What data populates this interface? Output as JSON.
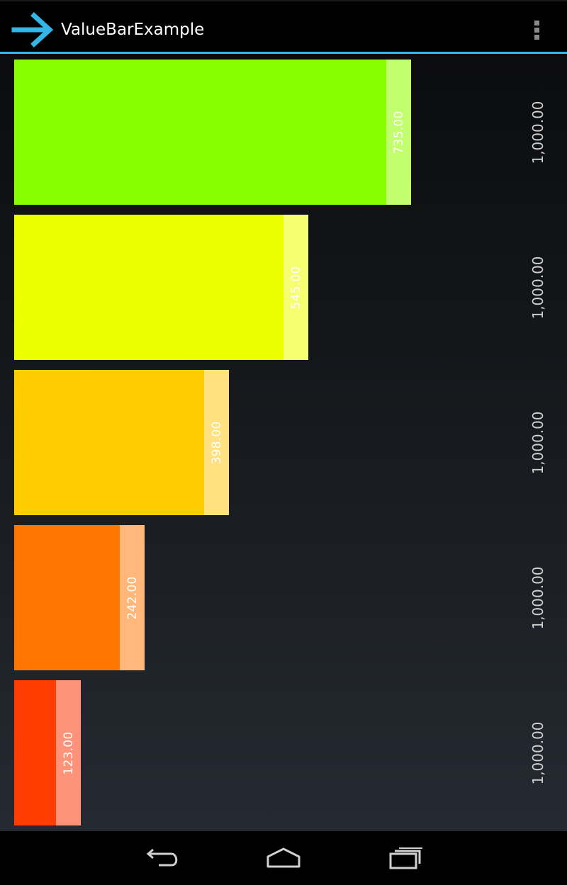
{
  "app": {
    "title": "ValueBarExample",
    "accent_color": "#33b5e5"
  },
  "action_bar": {
    "icon": "forward-arrow-icon",
    "overflow_icon": "overflow-menu-icon"
  },
  "bars": [
    {
      "value_label": "735.00",
      "max_label": "1,000.00",
      "value": 735,
      "max": 1000,
      "color": "#88ff00",
      "tip_color": "#c2ff6e"
    },
    {
      "value_label": "545.00",
      "max_label": "1,000.00",
      "value": 545,
      "max": 1000,
      "color": "#eeff00",
      "tip_color": "#f5ff70"
    },
    {
      "value_label": "398.00",
      "max_label": "1,000.00",
      "value": 398,
      "max": 1000,
      "color": "#ffcc00",
      "tip_color": "#ffe180"
    },
    {
      "value_label": "242.00",
      "max_label": "1,000.00",
      "value": 242,
      "max": 1000,
      "color": "#ff7700",
      "tip_color": "#ffb77a"
    },
    {
      "value_label": "123.00",
      "max_label": "1,000.00",
      "value": 123,
      "max": 1000,
      "color": "#ff3d00",
      "tip_color": "#ff9379"
    }
  ],
  "nav_bar": {
    "back_icon": "back-icon",
    "home_icon": "home-icon",
    "recents_icon": "recent-apps-icon"
  }
}
